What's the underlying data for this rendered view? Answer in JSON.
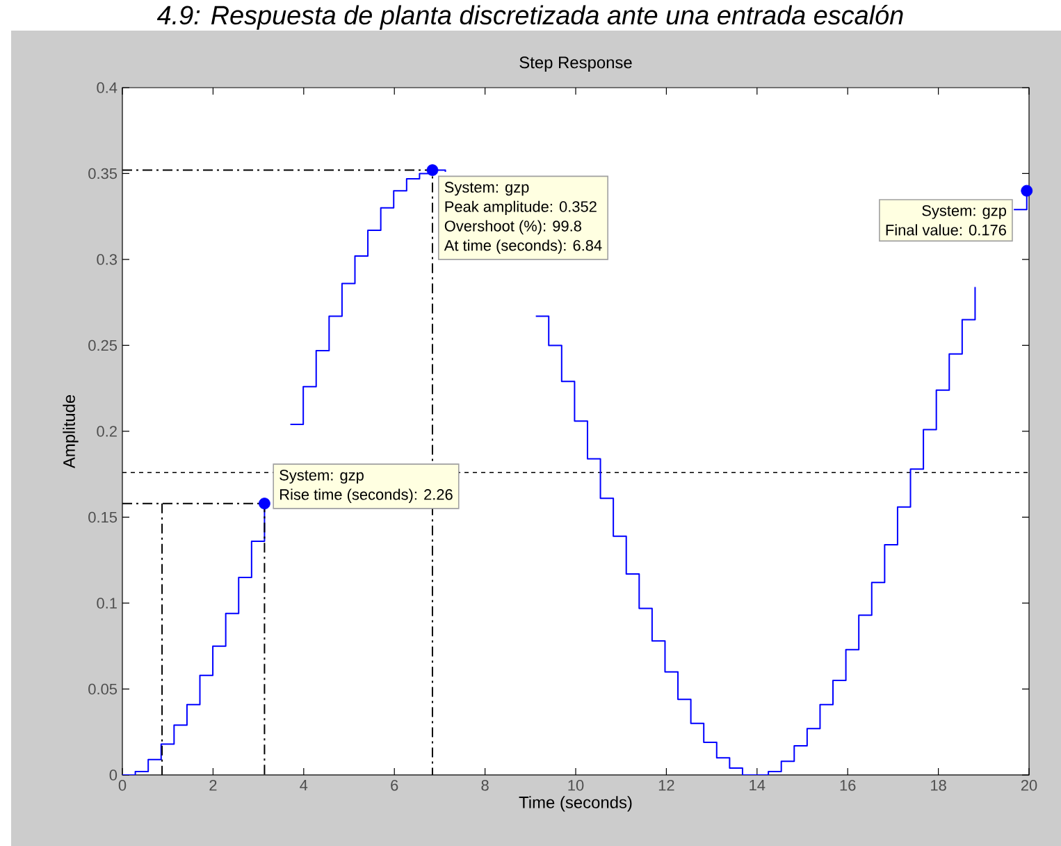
{
  "chart_data": {
    "type": "step",
    "title": "Step Response",
    "xlabel": "Time (seconds)",
    "ylabel": "Amplitude",
    "xlim": [
      0,
      20
    ],
    "xticks": [
      0,
      2,
      4,
      6,
      8,
      10,
      12,
      14,
      16,
      18,
      20
    ],
    "ylim": [
      0,
      0.4
    ],
    "yticks": [
      0,
      0.05,
      0.1,
      0.15,
      0.2,
      0.25,
      0.3,
      0.35,
      0.4
    ],
    "series": [
      {
        "color": "#0000ff",
        "x": [
          0,
          0.285,
          0.57,
          0.855,
          1.14,
          1.425,
          1.71,
          1.995,
          2.28,
          2.565,
          2.85,
          3.135,
          3.42,
          3.705,
          3.99,
          4.275,
          4.56,
          4.845,
          5.13,
          5.415,
          5.7,
          5.985,
          6.27,
          6.555,
          6.84,
          7.125,
          7.41,
          7.695,
          7.98,
          8.265,
          8.55,
          8.835,
          9.12,
          9.405,
          9.69,
          9.975,
          10.26,
          10.545,
          10.83,
          11.115,
          11.4,
          11.685,
          11.97,
          12.255,
          12.54,
          12.825,
          13.11,
          13.395,
          13.68,
          13.965,
          14.25,
          14.535,
          14.82,
          15.105,
          15.39,
          15.675,
          15.96,
          16.245,
          16.53,
          16.815,
          17.1,
          17.385,
          17.67,
          17.955,
          18.24,
          18.525,
          18.81,
          19.095,
          19.38,
          19.665,
          19.95
        ],
        "values": [
          0,
          0.002,
          0.009,
          0.018,
          0.029,
          0.041,
          0.058,
          0.075,
          0.094,
          0.115,
          0.136,
          0.158,
          null,
          0.204,
          0.226,
          0.247,
          0.267,
          0.286,
          0.302,
          0.317,
          0.33,
          0.34,
          0.347,
          0.35,
          0.352,
          0.351,
          null,
          null,
          null,
          null,
          null,
          null,
          0.267,
          0.25,
          0.229,
          0.206,
          0.184,
          0.161,
          0.139,
          0.117,
          0.097,
          0.078,
          0.06,
          0.044,
          0.03,
          0.019,
          0.01,
          0.004,
          0,
          0,
          0.002,
          0.008,
          0.017,
          0.027,
          0.041,
          0.055,
          0.073,
          0.093,
          0.112,
          0.134,
          0.156,
          0.178,
          0.201,
          0.224,
          0.245,
          0.265,
          0.284,
          null,
          null,
          0.329,
          0.34
        ]
      },
      {
        "type": "line",
        "color": "#000000",
        "line_style": "dashed",
        "x": [
          0,
          3.135,
          3.135
        ],
        "values": [
          0.158,
          0.158,
          0
        ]
      },
      {
        "type": "line",
        "color": "#000000",
        "line_style": "dashed",
        "x": [
          0.875,
          0.875
        ],
        "values": [
          0.158,
          0
        ]
      },
      {
        "type": "line",
        "color": "#000000",
        "line_style": "dashed",
        "x": [
          0,
          6.84,
          6.84
        ],
        "values": [
          0.352,
          0.352,
          0
        ]
      },
      {
        "type": "scatter",
        "color": "#0000ff",
        "x": [
          3.135,
          6.84,
          19.95
        ],
        "values": [
          0.158,
          0.352,
          0.34
        ]
      }
    ],
    "ref_lines": [
      {
        "axis": "y",
        "value": 0.176,
        "color": "#000000",
        "line_style": "dotted"
      }
    ],
    "annotations": [
      "4.9: Respuesta de planta discretizada ante una entrada escalón",
      {
        "text": "System: gzp",
        "x": 3.135,
        "y": 0.158
      },
      "Rise time (seconds): 2.26",
      {
        "text": "System: gzp",
        "x": 6.84,
        "y": 0.352
      },
      "Peak amplitude: 0.352",
      "Overshoot (%): 99.8",
      "At time (seconds): 6.84",
      {
        "text": "System: gzp",
        "x": 19.95,
        "y": 0.34
      },
      "Final value: 0.176"
    ]
  }
}
